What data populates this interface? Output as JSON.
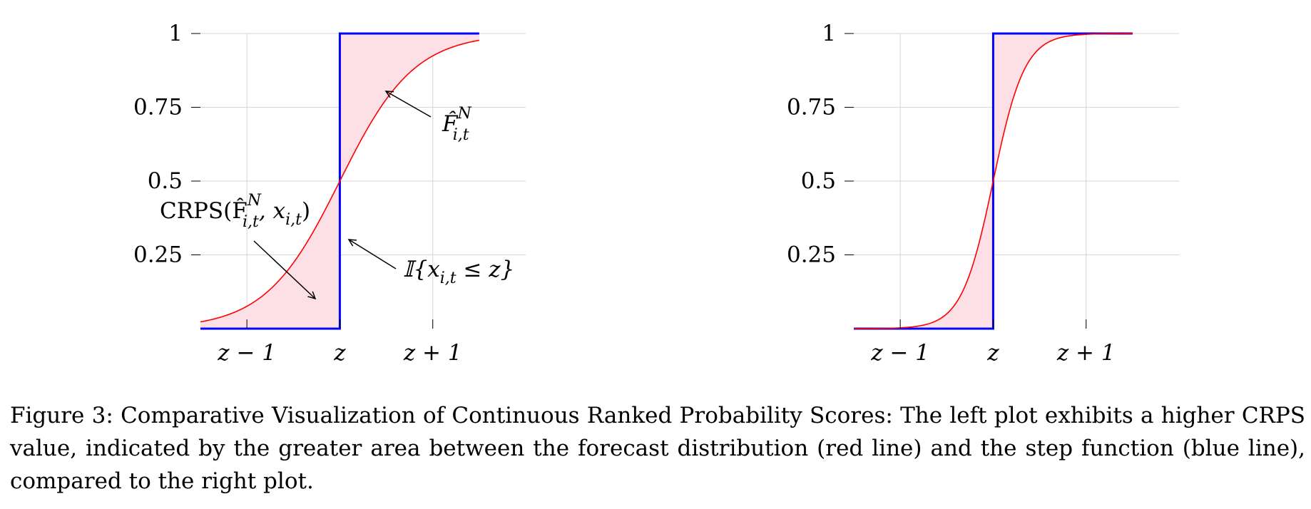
{
  "chart_data": [
    {
      "type": "line",
      "panel": "left",
      "xlim": [
        -1.5,
        2.0
      ],
      "ylim": [
        0,
        1
      ],
      "x_ticks": [
        {
          "value": -1,
          "label": "z − 1"
        },
        {
          "value": 0,
          "label": "z"
        },
        {
          "value": 1,
          "label": "z + 1"
        }
      ],
      "y_ticks": [
        {
          "value": 0.25,
          "label": "0.25"
        },
        {
          "value": 0.5,
          "label": "0.5"
        },
        {
          "value": 0.75,
          "label": "0.75"
        },
        {
          "value": 1,
          "label": "1"
        }
      ],
      "grid": true,
      "series": [
        {
          "kind": "forecast-cdf",
          "color": "#ff0000",
          "domain": [
            -1.5,
            1.5
          ],
          "scale": 0.4
        },
        {
          "kind": "step",
          "color": "#0000ff",
          "step_at": 0,
          "domain": [
            -1.5,
            1.5
          ]
        }
      ],
      "fill_color": "#fde0e5",
      "annotations": [
        {
          "label": "F̂",
          "sub": "i,t",
          "sup": "N"
        },
        {
          "label": "𝕀{x",
          "sub": "i,t",
          "rest": " ≤ z}"
        },
        {
          "label": "CRPS(F̂",
          "sub": "i,t",
          "sup": "N",
          "rest": ", x",
          "sub2": "i,t",
          "end": ")"
        }
      ]
    },
    {
      "type": "line",
      "panel": "right",
      "xlim": [
        -1.5,
        2.0
      ],
      "ylim": [
        0,
        1
      ],
      "x_ticks": [
        {
          "value": -1,
          "label": "z − 1"
        },
        {
          "value": 0,
          "label": "z"
        },
        {
          "value": 1,
          "label": "z + 1"
        }
      ],
      "y_ticks": [
        {
          "value": 0.25,
          "label": "0.25"
        },
        {
          "value": 0.5,
          "label": "0.5"
        },
        {
          "value": 0.75,
          "label": "0.75"
        },
        {
          "value": 1,
          "label": "1"
        }
      ],
      "grid": true,
      "series": [
        {
          "kind": "forecast-cdf",
          "color": "#ff0000",
          "domain": [
            -1.5,
            1.5
          ],
          "scale": 0.17
        },
        {
          "kind": "step",
          "color": "#0000ff",
          "step_at": 0,
          "domain": [
            -1.5,
            1.5
          ]
        }
      ],
      "fill_color": "#fde0e5"
    }
  ],
  "caption": "Figure 3: Comparative Visualization of Continuous Ranked Probability Scores: The left plot exhibits a higher CRPS value, indicated by the greater area between the forecast distribution (red line) and the step function (blue line), compared to the right plot."
}
